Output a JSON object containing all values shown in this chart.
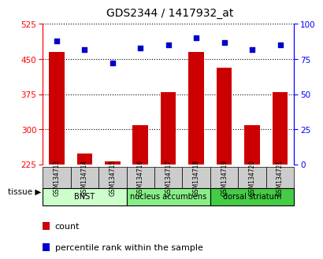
{
  "title": "GDS2344 / 1417932_at",
  "samples": [
    "GSM134713",
    "GSM134714",
    "GSM134715",
    "GSM134716",
    "GSM134717",
    "GSM134718",
    "GSM134719",
    "GSM134720",
    "GSM134721"
  ],
  "counts": [
    465,
    248,
    232,
    308,
    380,
    465,
    432,
    308,
    380
  ],
  "percentiles": [
    88,
    82,
    72,
    83,
    85,
    90,
    87,
    82,
    85
  ],
  "ylim_left": [
    225,
    525
  ],
  "ylim_right": [
    0,
    100
  ],
  "yticks_left": [
    225,
    300,
    375,
    450,
    525
  ],
  "yticks_right": [
    0,
    25,
    50,
    75,
    100
  ],
  "bar_color": "#cc0000",
  "scatter_color": "#0000cc",
  "bar_width": 0.55,
  "tissue_groups": [
    {
      "label": "BNST",
      "start": 0,
      "end": 2,
      "color": "#ccffcc"
    },
    {
      "label": "nucleus accumbens",
      "start": 3,
      "end": 5,
      "color": "#88ee88"
    },
    {
      "label": "dorsal striatum",
      "start": 6,
      "end": 8,
      "color": "#44cc44"
    }
  ],
  "tissue_label": "tissue",
  "grid_color": "#000000",
  "bg_color": "#ffffff",
  "xticklabel_bg": "#cccccc",
  "legend_count_label": "count",
  "legend_pct_label": "percentile rank within the sample"
}
